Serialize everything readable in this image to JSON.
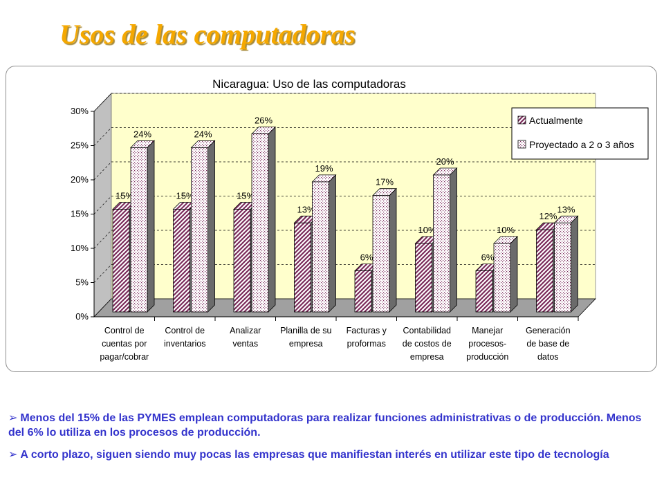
{
  "slide": {
    "title": "Usos de las computadoras"
  },
  "chart_data": {
    "type": "bar",
    "title": "Nicaragua: Uso de las computadoras",
    "categories": [
      [
        "Control de",
        "cuentas por",
        "pagar/cobrar"
      ],
      [
        "Control de",
        "inventarios"
      ],
      [
        "Analizar",
        "ventas"
      ],
      [
        "Planilla de su",
        "empresa"
      ],
      [
        "Facturas y",
        "proformas"
      ],
      [
        "Contabilidad",
        "de costos de",
        "empresa"
      ],
      [
        "Manejar",
        "procesos-",
        "producción"
      ],
      [
        "Generación",
        "de base de",
        "datos"
      ]
    ],
    "series": [
      {
        "name": "Actualmente",
        "values": [
          15,
          15,
          15,
          13,
          6,
          10,
          6,
          12
        ],
        "labels": [
          "15%",
          "15%",
          "15%",
          "13%",
          "6%",
          "10%",
          "6%",
          "12%"
        ],
        "pattern": "diagonal-hatch",
        "color": "#7a2a5a"
      },
      {
        "name": "Proyectado a 2 o 3 años",
        "values": [
          24,
          24,
          26,
          19,
          17,
          20,
          10,
          13
        ],
        "labels": [
          "24%",
          "24%",
          "26%",
          "19%",
          "17%",
          "20%",
          "10%",
          "13%"
        ],
        "pattern": "dotted",
        "color": "#7a2a5a"
      }
    ],
    "ylim": [
      0,
      30
    ],
    "yticks": [
      "0%",
      "5%",
      "10%",
      "15%",
      "20%",
      "25%",
      "30%"
    ],
    "grid": true,
    "legend": "top-right",
    "back_wall_color": "#ffffcc"
  },
  "bullets": [
    "Menos del 15% de las PYMES emplean computadoras para realizar funciones administrativas o de producción. Menos del 6% lo utiliza en los procesos de producción.",
    "A corto plazo, siguen siendo muy pocas las empresas que manifiestan interés en utilizar este tipo de tecnología"
  ],
  "bullet_icon": "arrow-bullet-icon"
}
